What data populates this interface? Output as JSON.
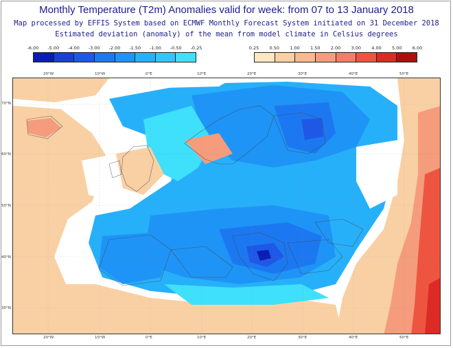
{
  "header": {
    "title": "Monthly Temperature (T2m) Anomalies valid for week: from 07 to 13 January 2018",
    "subtitle_1": "Map processed by EFFIS System based on ECMWF Monthly Forecast System initiated on 31 December 2018",
    "subtitle_2": "Estimated deviation (anomaly) of the mean from model climate in Celsius degrees"
  },
  "legend_cold": {
    "ticks": [
      "-6.00",
      "-5.00",
      "-4.00",
      "-3.00",
      "-2.00",
      "-1.50",
      "-1.00",
      "-0.50",
      "-0.25"
    ],
    "colors": [
      "#0a1db4",
      "#1a3fd6",
      "#2058e6",
      "#1c78f0",
      "#1e94f6",
      "#27b0fa",
      "#33c6fb",
      "#3ee0fb"
    ]
  },
  "legend_warm": {
    "ticks": [
      "0.25",
      "0.50",
      "1.00",
      "1.50",
      "2.00",
      "3.00",
      "4.00",
      "5.00",
      "6.00"
    ],
    "colors": [
      "#fde6c4",
      "#f9d0a4",
      "#f7b98e",
      "#f59c7c",
      "#f37d66",
      "#ee5540",
      "#dc2a24",
      "#b00d10"
    ]
  },
  "axes": {
    "lon_top": [
      "20°W",
      "10°W",
      "0°E",
      "10°E",
      "20°E",
      "30°E",
      "40°E",
      "50°E"
    ],
    "lon_bottom": [
      "20°W",
      "10°W",
      "0°E",
      "10°E",
      "20°E",
      "30°E",
      "40°E",
      "50°E"
    ],
    "lat_left": [
      "70°N",
      "60°N",
      "50°N",
      "40°N",
      "30°N"
    ]
  },
  "map_colors": {
    "ocean_white": "#ffffff",
    "pale_cyan": "#9eeafa",
    "cyan": "#3ee0fb",
    "light_blue": "#27b0fa",
    "mid_blue": "#1e94f6",
    "blue": "#1c78f0",
    "deep_blue": "#2058e6",
    "pale_orange": "#f9d0a4",
    "orange": "#f59c7c",
    "red_orange": "#ee5540",
    "red": "#dc2a24"
  }
}
